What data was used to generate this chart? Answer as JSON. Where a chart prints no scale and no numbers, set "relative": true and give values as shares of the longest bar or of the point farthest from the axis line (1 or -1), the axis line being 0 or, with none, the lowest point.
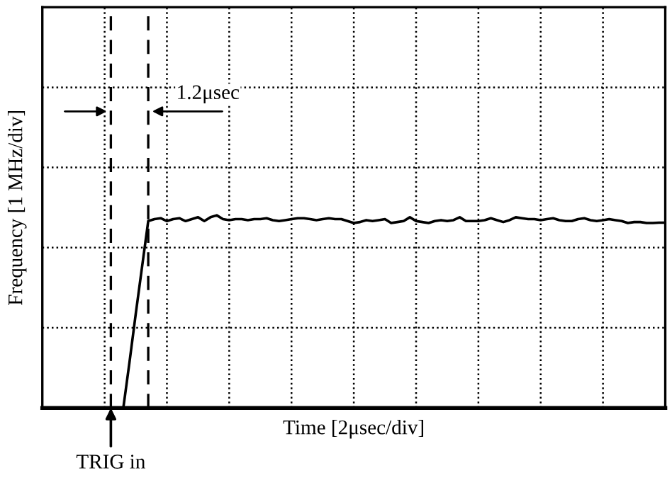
{
  "chart_data": {
    "type": "line",
    "xlabel": "Time [2μsec/div]",
    "ylabel": "Frequency [1 MHz/div]",
    "color": "#000000",
    "relative": true,
    "grid": true,
    "categories": [
      null,
      null,
      null,
      null,
      null,
      null,
      null,
      null,
      null,
      null,
      null,
      null,
      null,
      null,
      null,
      null,
      null,
      null,
      null,
      null,
      null,
      null,
      null,
      null,
      null,
      null,
      null,
      null,
      null,
      null,
      null,
      null,
      null,
      null,
      null,
      null,
      null,
      null,
      null,
      null,
      null,
      null,
      null,
      null,
      null,
      null,
      null,
      null,
      null,
      null,
      null,
      null,
      null,
      null,
      null,
      null,
      null,
      null,
      null,
      null,
      null,
      null,
      null,
      null,
      null,
      null,
      null,
      null,
      null,
      null,
      null,
      null,
      null,
      null,
      null,
      null,
      null,
      null,
      null,
      null,
      null,
      null,
      null,
      null,
      null,
      null,
      null,
      null,
      null,
      null,
      null,
      null,
      null,
      null,
      null,
      null,
      null,
      null,
      null,
      null,
      null
    ],
    "values": [
      0,
      0,
      0,
      0,
      0,
      0,
      0,
      0,
      0,
      0,
      0,
      0,
      0,
      0,
      0.24,
      0.49,
      0.73,
      0.97,
      0.98,
      0.985,
      0.97,
      0.98,
      0.985,
      0.97,
      0.98,
      0.99,
      0.97,
      0.99,
      1.0,
      0.98,
      0.975,
      0.98,
      0.98,
      0.975,
      0.98,
      0.98,
      0.985,
      0.975,
      0.97,
      0.975,
      0.98,
      0.985,
      0.985,
      0.98,
      0.975,
      0.98,
      0.985,
      0.98,
      0.98,
      0.97,
      0.96,
      0.965,
      0.975,
      0.97,
      0.975,
      0.98,
      0.96,
      0.965,
      0.97,
      0.99,
      0.97,
      0.965,
      0.96,
      0.97,
      0.975,
      0.97,
      0.975,
      0.99,
      0.97,
      0.97,
      0.97,
      0.975,
      0.985,
      0.975,
      0.965,
      0.975,
      0.99,
      0.985,
      0.98,
      0.98,
      0.975,
      0.98,
      0.985,
      0.975,
      0.97,
      0.97,
      0.98,
      0.985,
      0.975,
      0.97,
      0.975,
      0.98,
      0.975,
      0.97,
      0.96,
      0.965,
      0.965,
      0.96,
      0.96,
      0.962,
      0.962
    ],
    "annotations": [
      "1.2μsec",
      "TRIG in"
    ]
  }
}
